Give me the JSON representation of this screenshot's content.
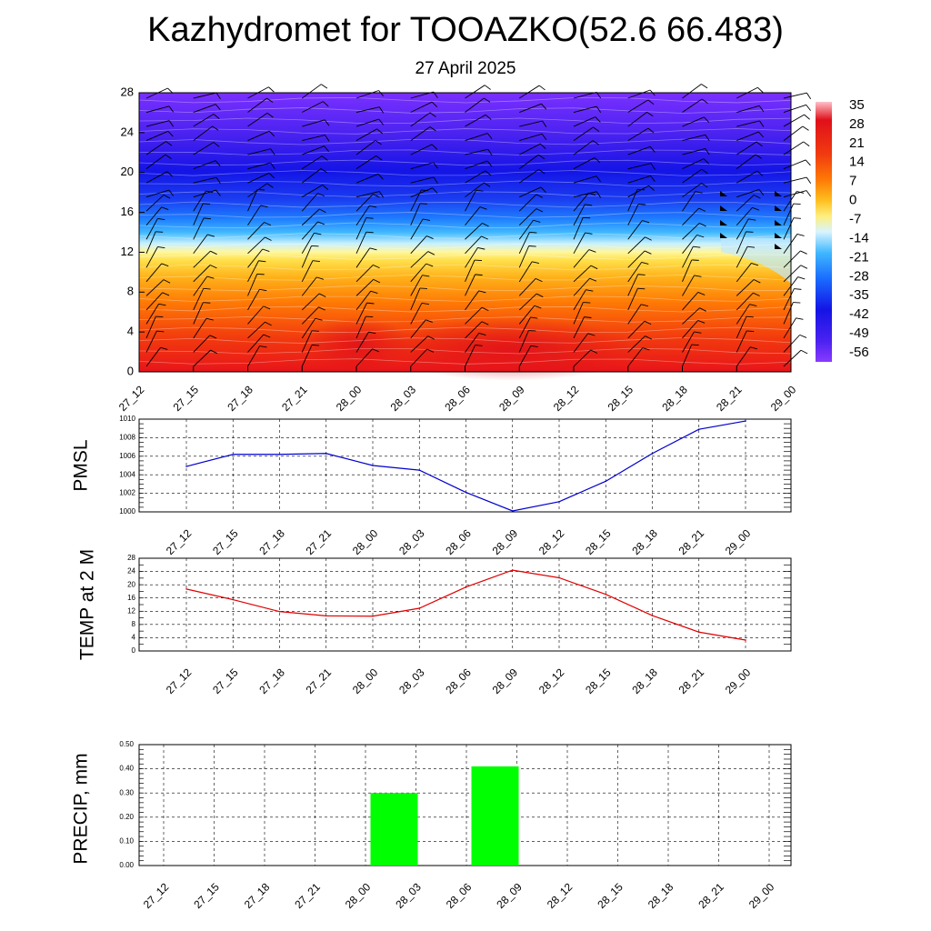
{
  "title": "Kazhydromet for TOOAZKO(52.6 66.483)",
  "subtitle": "27 April 2025",
  "colors": {
    "pmsl_line": "#0000cc",
    "temp_line": "#e00000",
    "precip_bar": "#00ff00",
    "gridline": "#000000"
  },
  "chart_data": [
    {
      "type": "heatmap",
      "title": "",
      "x": [
        "27_12",
        "27_15",
        "27_18",
        "27_21",
        "28_00",
        "28_03",
        "28_06",
        "28_09",
        "28_12",
        "28_15",
        "28_18",
        "28_21",
        "29_00"
      ],
      "y_ticks": [
        0,
        4,
        8,
        12,
        16,
        20,
        24,
        28
      ],
      "ylim": [
        0,
        28
      ],
      "levels": [
        -56,
        -49,
        -42,
        -35,
        -28,
        -21,
        -14,
        -7,
        0,
        7,
        14,
        21,
        28,
        35
      ],
      "colorbar_labels": [
        "35",
        "28",
        "21",
        "14",
        "7",
        "0",
        "-7",
        "-14",
        "-21",
        "-28",
        "-35",
        "-42",
        "-49",
        "-56"
      ],
      "colorbar_placement": "right",
      "y_freezing_level": [
        12,
        12,
        12,
        12,
        12,
        12,
        12,
        12,
        12,
        12,
        12,
        11,
        10
      ],
      "wind_barbs": true
    },
    {
      "type": "line",
      "ylabel": "PMSL",
      "x": [
        "27_12",
        "27_15",
        "27_18",
        "27_21",
        "28_00",
        "28_03",
        "28_06",
        "28_09",
        "28_12",
        "28_15",
        "28_18",
        "28_21",
        "29_00"
      ],
      "values": [
        1004.9,
        1006.2,
        1006.2,
        1006.3,
        1005.0,
        1004.5,
        1002.1,
        1000.1,
        1001.1,
        1003.3,
        1006.3,
        1008.9,
        1009.8
      ],
      "ylim": [
        1000,
        1010
      ],
      "y_ticks": [
        "1000",
        "1002",
        "1004",
        "1006",
        "1008",
        "1010"
      ],
      "grid": true
    },
    {
      "type": "line",
      "ylabel": "TEMP at 2 M",
      "x": [
        "27_12",
        "27_15",
        "27_18",
        "27_21",
        "28_00",
        "28_03",
        "28_06",
        "28_09",
        "28_12",
        "28_15",
        "28_18",
        "28_21",
        "29_00"
      ],
      "values": [
        18.7,
        15.5,
        11.9,
        10.6,
        10.5,
        12.9,
        19.3,
        24.4,
        22.1,
        17.1,
        10.7,
        5.7,
        3.3
      ],
      "ylim": [
        0,
        28
      ],
      "y_ticks": [
        "0",
        "4",
        "8",
        "12",
        "16",
        "20",
        "24",
        "28"
      ],
      "grid": true
    },
    {
      "type": "bar",
      "ylabel": "PRECIP, mm",
      "categories": [
        "27_12",
        "27_15",
        "27_18",
        "27_21",
        "28_00",
        "28_03",
        "28_06",
        "28_09",
        "28_12",
        "28_15",
        "28_18",
        "28_21",
        "29_00"
      ],
      "values": [
        0,
        0,
        0,
        0,
        0,
        0.3,
        0,
        0.41,
        0,
        0,
        0,
        0,
        0
      ],
      "ylim": [
        0,
        0.5
      ],
      "y_ticks": [
        "0.00",
        "0.10",
        "0.20",
        "0.30",
        "0.40",
        "0.50"
      ],
      "grid": true
    }
  ]
}
